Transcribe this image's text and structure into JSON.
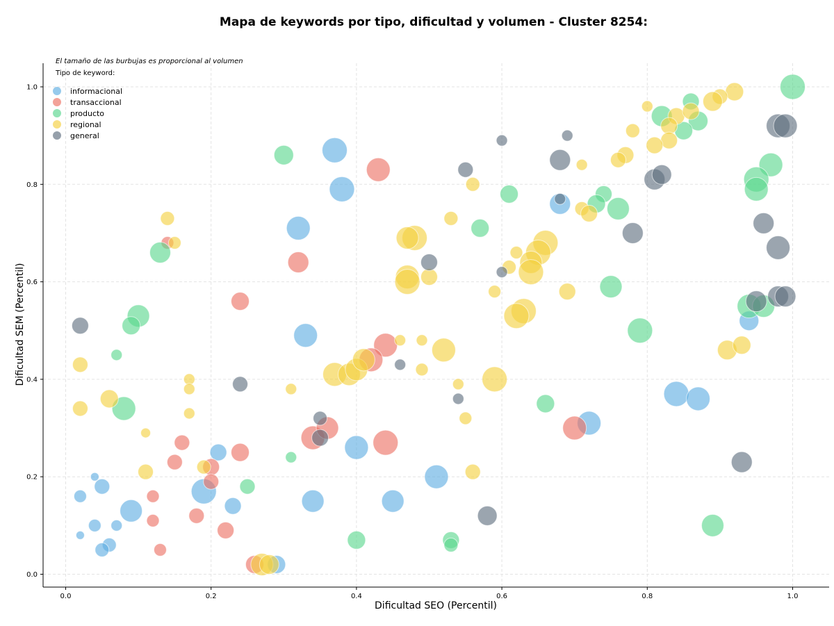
{
  "chart_data": {
    "type": "scatter",
    "title": "Mapa de keywords por tipo, dificultad y volumen - Cluster 8254:",
    "xlabel": "Dificultad SEO (Percentil)",
    "ylabel": "Dificultad SEM (Percentil)",
    "xlim": [
      -0.03,
      1.05
    ],
    "ylim": [
      -0.025,
      1.05
    ],
    "xticks": [
      "0.0",
      "0.2",
      "0.4",
      "0.6",
      "0.8",
      "1.0"
    ],
    "yticks": [
      "0.0",
      "0.2",
      "0.4",
      "0.6",
      "0.8",
      "1.0"
    ],
    "grid": true,
    "annotation": "El tamaño de las burbujas es proporcional al volumen",
    "legend_title": "Tipo de keyword:",
    "legend_position": "top-left",
    "series": [
      {
        "name": "informacional",
        "color": "#5DADE2",
        "points": [
          [
            0.37,
            0.87,
            18
          ],
          [
            0.38,
            0.79,
            18
          ],
          [
            0.32,
            0.71,
            17
          ],
          [
            0.33,
            0.49,
            17
          ],
          [
            0.68,
            0.76,
            15
          ],
          [
            0.94,
            0.52,
            14
          ],
          [
            0.84,
            0.37,
            18
          ],
          [
            0.87,
            0.36,
            17
          ],
          [
            0.72,
            0.31,
            17
          ],
          [
            0.4,
            0.26,
            17
          ],
          [
            0.51,
            0.2,
            17
          ],
          [
            0.34,
            0.15,
            16
          ],
          [
            0.45,
            0.15,
            16
          ],
          [
            0.19,
            0.17,
            18
          ],
          [
            0.21,
            0.25,
            12
          ],
          [
            0.23,
            0.14,
            12
          ],
          [
            0.09,
            0.13,
            16
          ],
          [
            0.05,
            0.18,
            11
          ],
          [
            0.02,
            0.16,
            9
          ],
          [
            0.04,
            0.2,
            6
          ],
          [
            0.04,
            0.1,
            9
          ],
          [
            0.07,
            0.1,
            8
          ],
          [
            0.06,
            0.06,
            10
          ],
          [
            0.05,
            0.05,
            10
          ],
          [
            0.02,
            0.08,
            6
          ],
          [
            0.29,
            0.02,
            13
          ]
        ]
      },
      {
        "name": "transaccional",
        "color": "#EC7063",
        "points": [
          [
            0.43,
            0.83,
            17
          ],
          [
            0.44,
            0.47,
            17
          ],
          [
            0.42,
            0.44,
            17
          ],
          [
            0.44,
            0.27,
            18
          ],
          [
            0.34,
            0.28,
            17
          ],
          [
            0.36,
            0.3,
            16
          ],
          [
            0.7,
            0.3,
            17
          ],
          [
            0.32,
            0.64,
            15
          ],
          [
            0.24,
            0.56,
            13
          ],
          [
            0.14,
            0.68,
            9
          ],
          [
            0.16,
            0.27,
            11
          ],
          [
            0.15,
            0.23,
            11
          ],
          [
            0.24,
            0.25,
            13
          ],
          [
            0.2,
            0.22,
            12
          ],
          [
            0.2,
            0.19,
            11
          ],
          [
            0.12,
            0.16,
            9
          ],
          [
            0.12,
            0.11,
            9
          ],
          [
            0.18,
            0.12,
            11
          ],
          [
            0.22,
            0.09,
            12
          ],
          [
            0.13,
            0.05,
            9
          ],
          [
            0.26,
            0.02,
            13
          ]
        ]
      },
      {
        "name": "producto",
        "color": "#58D68D",
        "points": [
          [
            1.0,
            1.0,
            18
          ],
          [
            0.82,
            0.94,
            15
          ],
          [
            0.86,
            0.97,
            12
          ],
          [
            0.87,
            0.93,
            14
          ],
          [
            0.85,
            0.91,
            13
          ],
          [
            0.97,
            0.84,
            17
          ],
          [
            0.95,
            0.81,
            18
          ],
          [
            0.95,
            0.79,
            17
          ],
          [
            0.61,
            0.78,
            13
          ],
          [
            0.74,
            0.78,
            12
          ],
          [
            0.73,
            0.76,
            13
          ],
          [
            0.76,
            0.75,
            16
          ],
          [
            0.57,
            0.71,
            13
          ],
          [
            0.3,
            0.86,
            14
          ],
          [
            0.75,
            0.59,
            16
          ],
          [
            0.79,
            0.5,
            18
          ],
          [
            0.94,
            0.55,
            17
          ],
          [
            0.96,
            0.55,
            16
          ],
          [
            0.66,
            0.35,
            13
          ],
          [
            0.89,
            0.1,
            16
          ],
          [
            0.53,
            0.07,
            12
          ],
          [
            0.53,
            0.06,
            10
          ],
          [
            0.4,
            0.07,
            13
          ],
          [
            0.25,
            0.18,
            11
          ],
          [
            0.31,
            0.24,
            8
          ],
          [
            0.1,
            0.53,
            16
          ],
          [
            0.09,
            0.51,
            13
          ],
          [
            0.07,
            0.45,
            8
          ],
          [
            0.08,
            0.34,
            17
          ],
          [
            0.13,
            0.66,
            15
          ]
        ]
      },
      {
        "name": "regional",
        "color": "#F4D03F",
        "points": [
          [
            0.92,
            0.99,
            13
          ],
          [
            0.9,
            0.98,
            11
          ],
          [
            0.89,
            0.97,
            14
          ],
          [
            0.84,
            0.94,
            12
          ],
          [
            0.86,
            0.95,
            12
          ],
          [
            0.83,
            0.92,
            12
          ],
          [
            0.83,
            0.89,
            12
          ],
          [
            0.8,
            0.96,
            8
          ],
          [
            0.78,
            0.91,
            10
          ],
          [
            0.81,
            0.88,
            12
          ],
          [
            0.77,
            0.86,
            12
          ],
          [
            0.76,
            0.85,
            11
          ],
          [
            0.71,
            0.84,
            8
          ],
          [
            0.56,
            0.8,
            10
          ],
          [
            0.71,
            0.75,
            10
          ],
          [
            0.72,
            0.74,
            12
          ],
          [
            0.48,
            0.69,
            18
          ],
          [
            0.47,
            0.69,
            16
          ],
          [
            0.66,
            0.68,
            18
          ],
          [
            0.65,
            0.66,
            18
          ],
          [
            0.64,
            0.64,
            16
          ],
          [
            0.64,
            0.62,
            18
          ],
          [
            0.62,
            0.66,
            9
          ],
          [
            0.61,
            0.63,
            10
          ],
          [
            0.53,
            0.73,
            10
          ],
          [
            0.47,
            0.61,
            17
          ],
          [
            0.47,
            0.6,
            18
          ],
          [
            0.5,
            0.61,
            12
          ],
          [
            0.59,
            0.58,
            9
          ],
          [
            0.69,
            0.58,
            12
          ],
          [
            0.63,
            0.54,
            18
          ],
          [
            0.62,
            0.53,
            18
          ],
          [
            0.52,
            0.46,
            17
          ],
          [
            0.59,
            0.4,
            18
          ],
          [
            0.37,
            0.41,
            17
          ],
          [
            0.39,
            0.41,
            16
          ],
          [
            0.4,
            0.42,
            16
          ],
          [
            0.41,
            0.44,
            16
          ],
          [
            0.46,
            0.48,
            8
          ],
          [
            0.49,
            0.48,
            8
          ],
          [
            0.49,
            0.42,
            9
          ],
          [
            0.54,
            0.39,
            8
          ],
          [
            0.55,
            0.32,
            9
          ],
          [
            0.56,
            0.21,
            11
          ],
          [
            0.91,
            0.46,
            14
          ],
          [
            0.93,
            0.47,
            13
          ],
          [
            0.14,
            0.73,
            10
          ],
          [
            0.15,
            0.68,
            9
          ],
          [
            0.02,
            0.43,
            11
          ],
          [
            0.06,
            0.36,
            13
          ],
          [
            0.02,
            0.34,
            11
          ],
          [
            0.17,
            0.4,
            8
          ],
          [
            0.17,
            0.38,
            8
          ],
          [
            0.17,
            0.33,
            8
          ],
          [
            0.11,
            0.29,
            7
          ],
          [
            0.11,
            0.21,
            11
          ],
          [
            0.19,
            0.22,
            10
          ],
          [
            0.31,
            0.38,
            8
          ],
          [
            0.27,
            0.02,
            16
          ],
          [
            0.28,
            0.02,
            14
          ]
        ]
      },
      {
        "name": "general",
        "color": "#5D6D7E",
        "points": [
          [
            0.98,
            0.92,
            17
          ],
          [
            0.99,
            0.92,
            17
          ],
          [
            0.81,
            0.81,
            15
          ],
          [
            0.82,
            0.82,
            14
          ],
          [
            0.68,
            0.85,
            15
          ],
          [
            0.69,
            0.9,
            8
          ],
          [
            0.6,
            0.89,
            8
          ],
          [
            0.55,
            0.83,
            11
          ],
          [
            0.68,
            0.77,
            8
          ],
          [
            0.78,
            0.7,
            15
          ],
          [
            0.96,
            0.72,
            15
          ],
          [
            0.98,
            0.67,
            17
          ],
          [
            0.5,
            0.64,
            12
          ],
          [
            0.6,
            0.62,
            8
          ],
          [
            0.95,
            0.56,
            15
          ],
          [
            0.98,
            0.57,
            15
          ],
          [
            0.99,
            0.57,
            15
          ],
          [
            0.46,
            0.43,
            8
          ],
          [
            0.24,
            0.39,
            11
          ],
          [
            0.02,
            0.51,
            12
          ],
          [
            0.35,
            0.32,
            10
          ],
          [
            0.35,
            0.28,
            12
          ],
          [
            0.54,
            0.36,
            8
          ],
          [
            0.93,
            0.23,
            15
          ],
          [
            0.58,
            0.12,
            14
          ]
        ]
      }
    ]
  }
}
